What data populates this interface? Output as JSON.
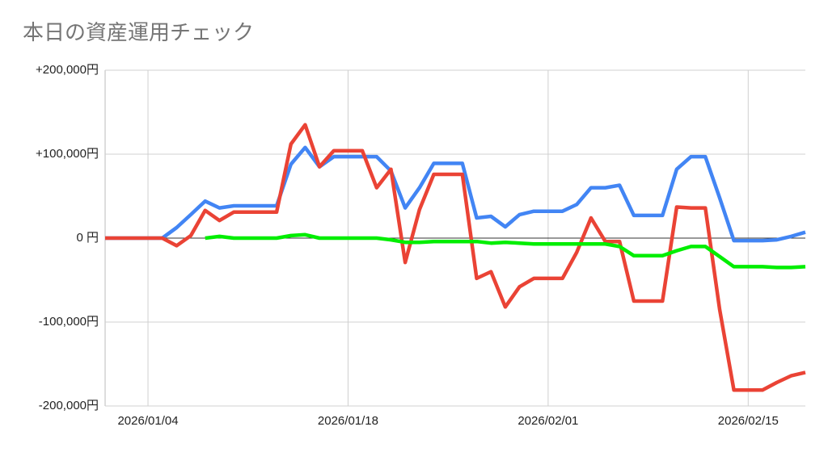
{
  "chart_data": {
    "type": "line",
    "title": "本日の資産運用チェック",
    "x": [
      "2026/01/01",
      "2026/01/02",
      "2026/01/03",
      "2026/01/04",
      "2026/01/05",
      "2026/01/06",
      "2026/01/07",
      "2026/01/08",
      "2026/01/09",
      "2026/01/10",
      "2026/01/11",
      "2026/01/12",
      "2026/01/13",
      "2026/01/14",
      "2026/01/15",
      "2026/01/16",
      "2026/01/17",
      "2026/01/18",
      "2026/01/19",
      "2026/01/20",
      "2026/01/21",
      "2026/01/22",
      "2026/01/23",
      "2026/01/24",
      "2026/01/25",
      "2026/01/26",
      "2026/01/27",
      "2026/01/28",
      "2026/01/29",
      "2026/01/30",
      "2026/01/31",
      "2026/02/01",
      "2026/02/02",
      "2026/02/03",
      "2026/02/04",
      "2026/02/05",
      "2026/02/06",
      "2026/02/07",
      "2026/02/08",
      "2026/02/09",
      "2026/02/10",
      "2026/02/11",
      "2026/02/12",
      "2026/02/13",
      "2026/02/14",
      "2026/02/15",
      "2026/02/16",
      "2026/02/17",
      "2026/02/18",
      "2026/02/19"
    ],
    "series": [
      {
        "color": "#4285f4",
        "values": [
          0,
          0,
          0,
          0,
          0,
          12500,
          28000,
          44000,
          36000,
          38500,
          38500,
          38500,
          38500,
          88000,
          108000,
          85000,
          97000,
          97000,
          97000,
          97000,
          80000,
          36000,
          60000,
          89000,
          89000,
          89000,
          24000,
          26000,
          13500,
          28000,
          32000,
          32000,
          32000,
          40000,
          60000,
          60000,
          63000,
          27000,
          27000,
          27000,
          82000,
          97000,
          97000,
          48000,
          -3000,
          -3000,
          -3000,
          -2000,
          2000,
          7000
        ]
      },
      {
        "color": "#ea4335",
        "values": [
          0,
          0,
          0,
          0,
          0,
          -9000,
          3000,
          33000,
          21000,
          31000,
          31000,
          31000,
          31000,
          112000,
          135000,
          85000,
          104000,
          104000,
          104000,
          60000,
          82000,
          -29000,
          34000,
          76000,
          76000,
          76000,
          -48000,
          -40000,
          -82000,
          -58000,
          -48000,
          -48000,
          -48000,
          -17000,
          24000,
          -4000,
          -4000,
          -75000,
          -75000,
          -75000,
          37000,
          36000,
          36000,
          -85000,
          -181000,
          -181000,
          -181000,
          -172000,
          -164000,
          -160000
        ]
      },
      {
        "color": "#00ee00",
        "values": [
          null,
          null,
          null,
          null,
          null,
          null,
          null,
          0,
          2000,
          0,
          0,
          0,
          0,
          3000,
          4000,
          0,
          0,
          0,
          0,
          0,
          -2000,
          -5000,
          -5000,
          -4000,
          -4000,
          -4000,
          -4000,
          -6000,
          -5000,
          -6000,
          -7000,
          -7000,
          -7000,
          -7000,
          -7000,
          -7000,
          -10000,
          -21000,
          -21000,
          -21000,
          -15000,
          -10000,
          -10000,
          -22000,
          -34000,
          -34000,
          -34000,
          -35000,
          -35000,
          -34000
        ]
      }
    ],
    "xlim": [
      "2026/01/01",
      "2026/02/19"
    ],
    "xticks": [
      "2026/01/04",
      "2026/01/18",
      "2026/02/01",
      "2026/02/15"
    ],
    "ylim": [
      -200000,
      200000
    ],
    "yticks": [
      {
        "value": -200000,
        "label": "-200,000円"
      },
      {
        "value": -100000,
        "label": "-100,000円"
      },
      {
        "value": 0,
        "label": "0 円"
      },
      {
        "value": 100000,
        "label": "+100,000円"
      },
      {
        "value": 200000,
        "label": "+200,000円"
      }
    ],
    "grid": true
  }
}
